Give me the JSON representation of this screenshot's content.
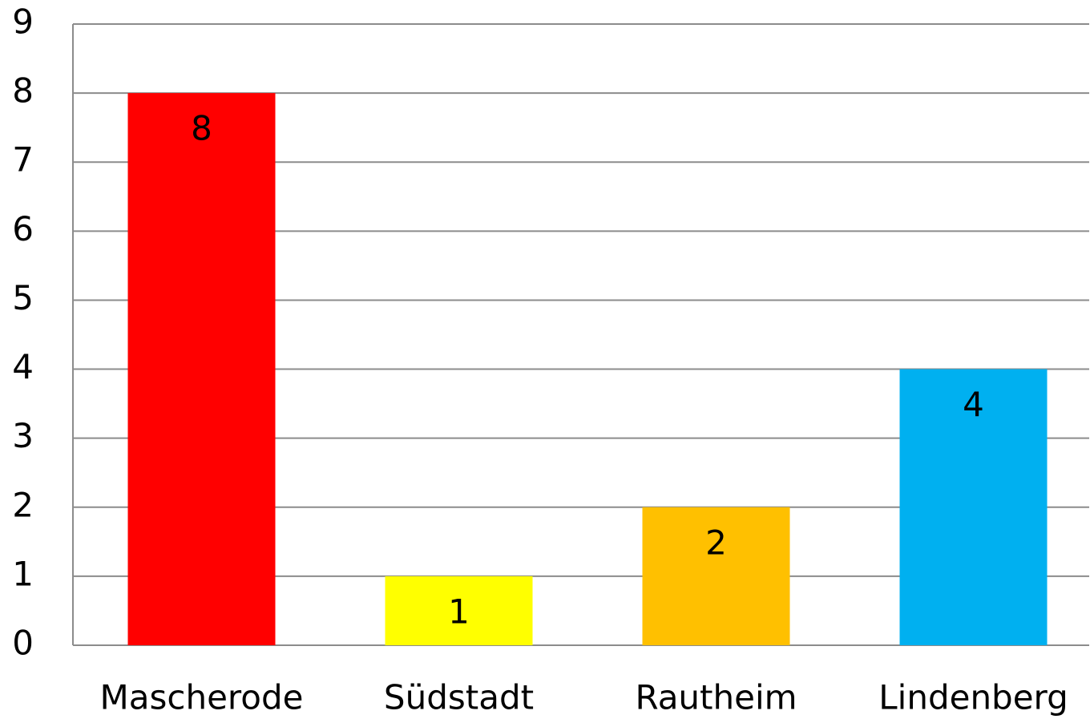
{
  "chart_data": {
    "type": "bar",
    "categories": [
      "Mascherode",
      "Südstadt",
      "Rautheim",
      "Lindenberg"
    ],
    "values": [
      8,
      1,
      2,
      4
    ],
    "colors": [
      "#ff0000",
      "#ffff00",
      "#ffc000",
      "#00b0f0"
    ],
    "ylim": [
      0,
      9
    ],
    "yticks": [
      0,
      1,
      2,
      3,
      4,
      5,
      6,
      7,
      8,
      9
    ],
    "grid": true
  }
}
